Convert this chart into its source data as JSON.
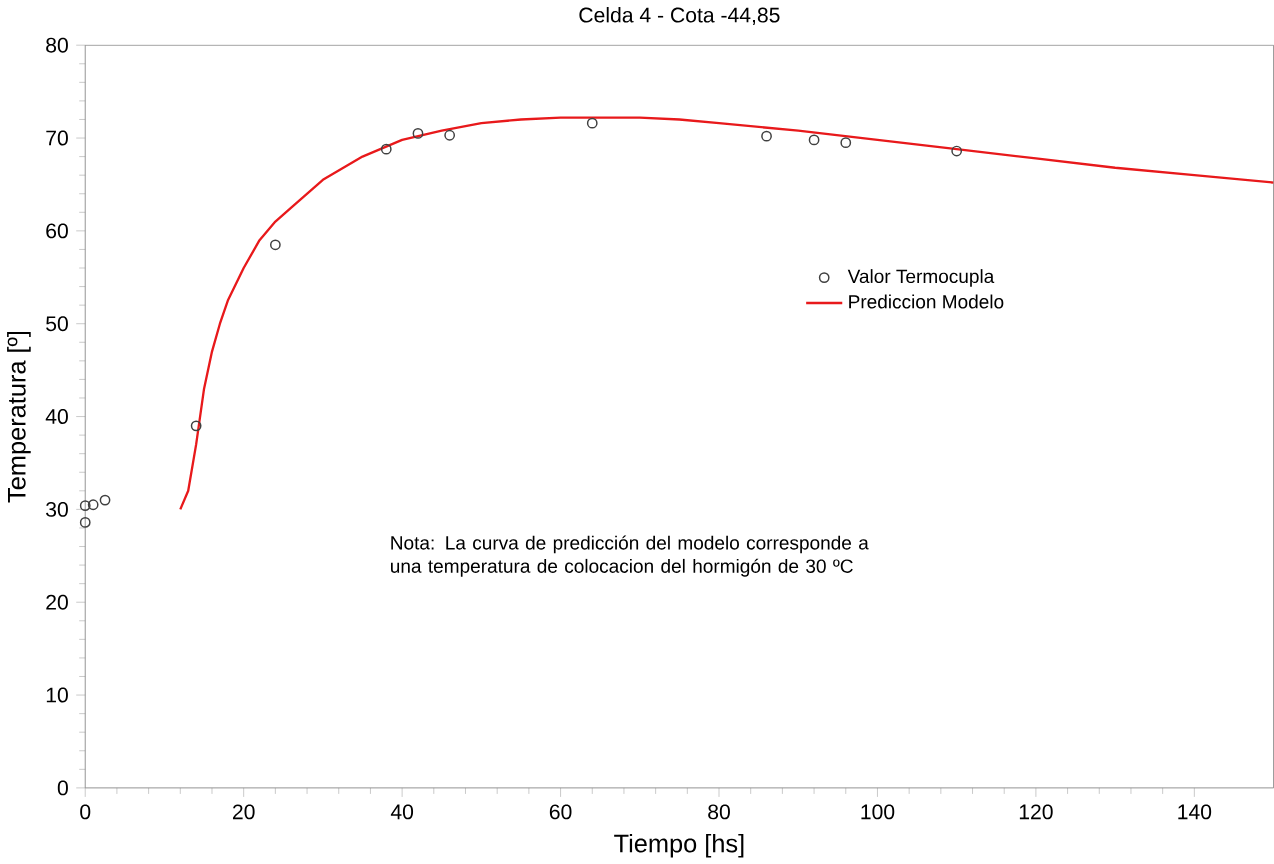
{
  "chart_data": {
    "type": "scatter",
    "title": "Celda 4 - Cota -44,85",
    "xlabel": "Tiempo [hs]",
    "ylabel": "Temperatura [º]",
    "xlim": [
      0,
      150
    ],
    "ylim": [
      0,
      80
    ],
    "xticks": [
      0,
      20,
      40,
      60,
      80,
      100,
      120,
      140
    ],
    "yticks": [
      0,
      10,
      20,
      30,
      40,
      50,
      60,
      70,
      80
    ],
    "grid": false,
    "legend": "right",
    "annotations": [
      "Nota: La curva de predicción del modelo corresponde a una temperatura de colocacion del hormigón de 30 ºC"
    ],
    "series": [
      {
        "name": "Valor Termocupla",
        "marker": "circle",
        "color": "#404040",
        "x": [
          0,
          0,
          1,
          2.5,
          14,
          24,
          38,
          42,
          46,
          64,
          86,
          92,
          96,
          110
        ],
        "values": [
          28.6,
          30.4,
          30.5,
          31,
          39,
          58.5,
          68.8,
          70.5,
          70.3,
          71.6,
          70.2,
          69.8,
          69.5,
          68.6
        ]
      },
      {
        "name": "Prediccion Modelo",
        "type": "line",
        "marker": "none",
        "color": "#e8191b",
        "x": [
          12,
          13,
          14,
          15,
          16,
          17,
          18,
          20,
          22,
          24,
          26,
          30,
          35,
          40,
          45,
          50,
          55,
          60,
          65,
          70,
          75,
          80,
          90,
          100,
          110,
          120,
          130,
          140,
          150
        ],
        "values": [
          30,
          32,
          37,
          43,
          47,
          50,
          52.5,
          56,
          59,
          61,
          62.5,
          65.5,
          68,
          69.8,
          70.8,
          71.6,
          72,
          72.2,
          72.2,
          72.2,
          72,
          71.6,
          70.8,
          69.8,
          68.8,
          67.8,
          66.8,
          66,
          65.2
        ]
      }
    ]
  }
}
